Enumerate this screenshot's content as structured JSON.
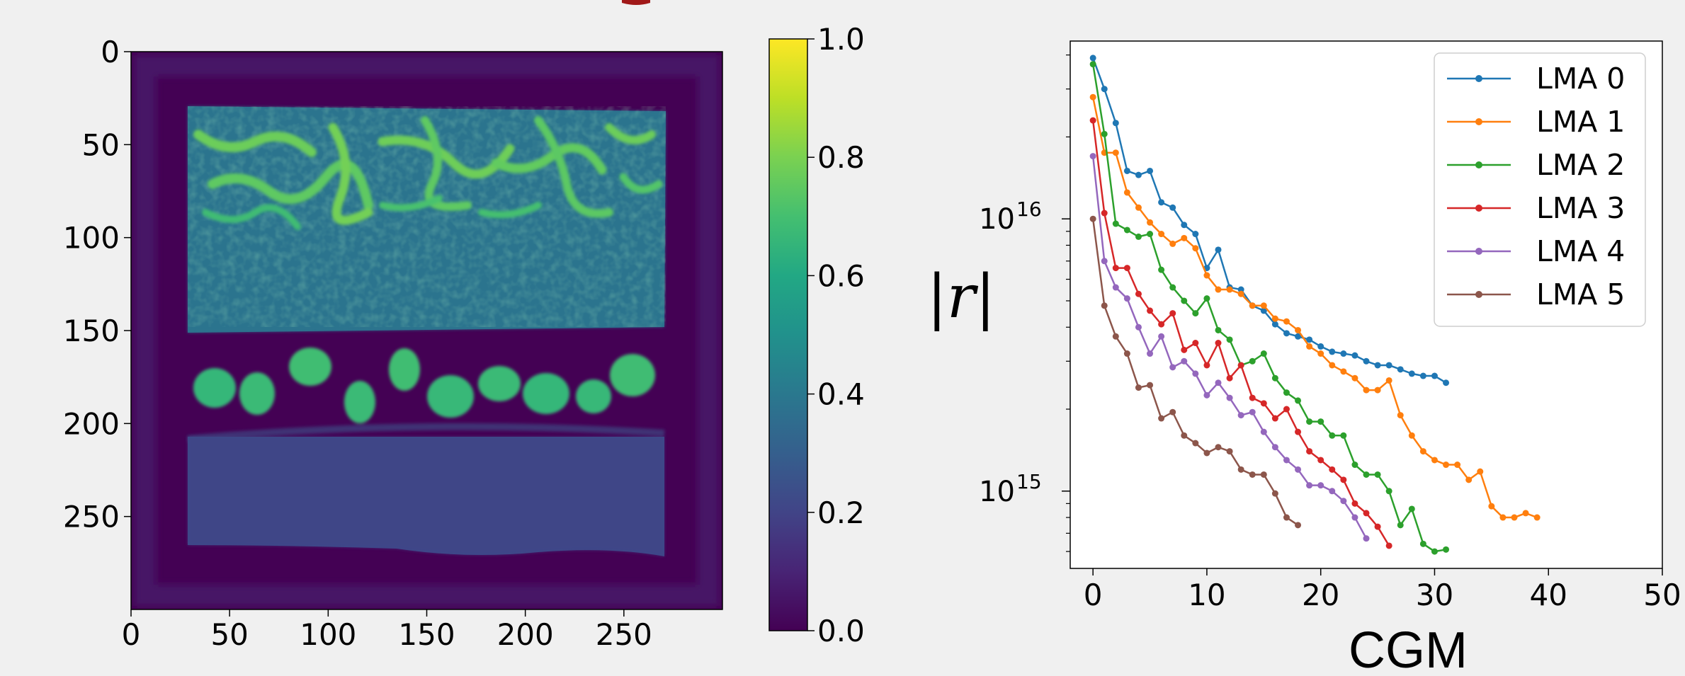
{
  "chart_data": [
    {
      "type": "heatmap",
      "title": "",
      "xlabel": "",
      "ylabel": "",
      "x_ticks": [
        0,
        50,
        100,
        150,
        200,
        250
      ],
      "y_ticks": [
        0,
        50,
        100,
        150,
        200,
        250
      ],
      "xlim": [
        0,
        300
      ],
      "ylim": [
        300,
        0
      ],
      "colormap": "viridis",
      "colorbar": {
        "ticks": [
          "0.0",
          "0.2",
          "0.4",
          "0.6",
          "0.8",
          "1.0"
        ],
        "range": [
          0.0,
          1.0
        ]
      },
      "regions": [
        {
          "name": "background",
          "value": 0.0
        },
        {
          "name": "frame",
          "value": 0.03
        },
        {
          "name": "upper-block",
          "rows": [
            30,
            150
          ],
          "cols": [
            30,
            270
          ],
          "value": 0.45
        },
        {
          "name": "bright-veins",
          "rows": [
            30,
            90
          ],
          "cols": [
            30,
            270
          ],
          "value": 0.7
        },
        {
          "name": "dot-row",
          "rows": [
            160,
            195
          ],
          "cols": [
            30,
            270
          ],
          "value": 0.6
        },
        {
          "name": "lower-block",
          "rows": [
            205,
            272
          ],
          "cols": [
            30,
            270
          ],
          "value": 0.2
        }
      ],
      "colors": {
        "c0": "#440154",
        "c02": "#3b528b",
        "c04": "#21918c",
        "c06": "#27ad81",
        "c08": "#7fd34e",
        "c10": "#fde725"
      }
    },
    {
      "type": "line",
      "title": "",
      "xlabel": "CGM",
      "ylabel": "|r|",
      "yscale": "log",
      "xlim": [
        -2,
        50
      ],
      "ylim": [
        520000000000000.0,
        4.5e+16
      ],
      "x_ticks": [
        "0",
        "10",
        "20",
        "30",
        "40",
        "50"
      ],
      "y_ticks": [
        {
          "base": "10",
          "exp": "16",
          "value": 1e+16
        },
        {
          "base": "10",
          "exp": "15",
          "value": 1000000000000000.0
        }
      ],
      "legend_position": "top-right",
      "series": [
        {
          "name": "LMA 0",
          "color": "#1f77b4",
          "values": [
            3.9e+16,
            3e+16,
            2.25e+16,
            1.5e+16,
            1.45e+16,
            1.5e+16,
            1.15e+16,
            1.1e+16,
            9500000000000000.0,
            8800000000000000.0,
            6600000000000000.0,
            7700000000000000.0,
            5600000000000000.0,
            5500000000000000.0,
            4800000000000000.0,
            4600000000000000.0,
            4100000000000000.0,
            3800000000000000.0,
            3700000000000000.0,
            3600000000000000.0,
            3400000000000000.0,
            3250000000000000.0,
            3200000000000000.0,
            3150000000000000.0,
            3000000000000000.0,
            2900000000000000.0,
            2900000000000000.0,
            2800000000000000.0,
            2700000000000000.0,
            2650000000000000.0,
            2650000000000000.0,
            2500000000000000.0
          ]
        },
        {
          "name": "LMA 1",
          "color": "#ff7f0e",
          "values": [
            2.8e+16,
            1.75e+16,
            1.75e+16,
            1.25e+16,
            1.1e+16,
            9700000000000000.0,
            8800000000000000.0,
            8100000000000000.0,
            8500000000000000.0,
            7800000000000000.0,
            6200000000000000.0,
            5500000000000000.0,
            5500000000000000.0,
            5300000000000000.0,
            4800000000000000.0,
            4800000000000000.0,
            4300000000000000.0,
            4200000000000000.0,
            3900000000000000.0,
            3400000000000000.0,
            3200000000000000.0,
            2900000000000000.0,
            2750000000000000.0,
            2600000000000000.0,
            2350000000000000.0,
            2350000000000000.0,
            2550000000000000.0,
            1900000000000000.0,
            1600000000000000.0,
            1400000000000000.0,
            1300000000000000.0,
            1250000000000000.0,
            1250000000000000.0,
            1100000000000000.0,
            1180000000000000.0,
            880000000000000.0,
            800000000000000.0,
            800000000000000.0,
            830000000000000.0,
            800000000000000.0
          ]
        },
        {
          "name": "LMA 2",
          "color": "#2ca02c",
          "values": [
            3.7e+16,
            2.05e+16,
            9600000000000000.0,
            9100000000000000.0,
            8600000000000000.0,
            8800000000000000.0,
            6500000000000000.0,
            5600000000000000.0,
            5000000000000000.0,
            4500000000000000.0,
            5100000000000000.0,
            3900000000000000.0,
            3600000000000000.0,
            2900000000000000.0,
            3000000000000000.0,
            3200000000000000.0,
            2600000000000000.0,
            2300000000000000.0,
            2150000000000000.0,
            1800000000000000.0,
            1800000000000000.0,
            1600000000000000.0,
            1600000000000000.0,
            1250000000000000.0,
            1150000000000000.0,
            1150000000000000.0,
            1000000000000000.0,
            750000000000000.0,
            860000000000000.0,
            640000000000000.0,
            600000000000000.0,
            610000000000000.0
          ]
        },
        {
          "name": "LMA 3",
          "color": "#d62728",
          "values": [
            2.3e+16,
            1.05e+16,
            6600000000000000.0,
            6600000000000000.0,
            5300000000000000.0,
            4600000000000000.0,
            4100000000000000.0,
            4500000000000000.0,
            3300000000000000.0,
            3500000000000000.0,
            2900000000000000.0,
            3500000000000000.0,
            2600000000000000.0,
            2900000000000000.0,
            2200000000000000.0,
            2100000000000000.0,
            1850000000000000.0,
            2000000000000000.0,
            1650000000000000.0,
            1400000000000000.0,
            1300000000000000.0,
            1200000000000000.0,
            1100000000000000.0,
            900000000000000.0,
            830000000000000.0,
            740000000000000.0,
            630000000000000.0
          ]
        },
        {
          "name": "LMA 4",
          "color": "#9467bd",
          "values": [
            1.7e+16,
            7000000000000000.0,
            5600000000000000.0,
            5100000000000000.0,
            4000000000000000.0,
            3200000000000000.0,
            3700000000000000.0,
            2850000000000000.0,
            3000000000000000.0,
            2700000000000000.0,
            2250000000000000.0,
            2500000000000000.0,
            2200000000000000.0,
            1900000000000000.0,
            1950000000000000.0,
            1650000000000000.0,
            1450000000000000.0,
            1300000000000000.0,
            1200000000000000.0,
            1050000000000000.0,
            1050000000000000.0,
            1000000000000000.0,
            920000000000000.0,
            800000000000000.0,
            670000000000000.0
          ]
        },
        {
          "name": "LMA 5",
          "color": "#8c564b",
          "values": [
            1e+16,
            4800000000000000.0,
            3700000000000000.0,
            3200000000000000.0,
            2400000000000000.0,
            2450000000000000.0,
            1850000000000000.0,
            1950000000000000.0,
            1600000000000000.0,
            1500000000000000.0,
            1380000000000000.0,
            1450000000000000.0,
            1400000000000000.0,
            1200000000000000.0,
            1150000000000000.0,
            1150000000000000.0,
            980000000000000.0,
            800000000000000.0,
            750000000000000.0
          ]
        }
      ]
    }
  ]
}
